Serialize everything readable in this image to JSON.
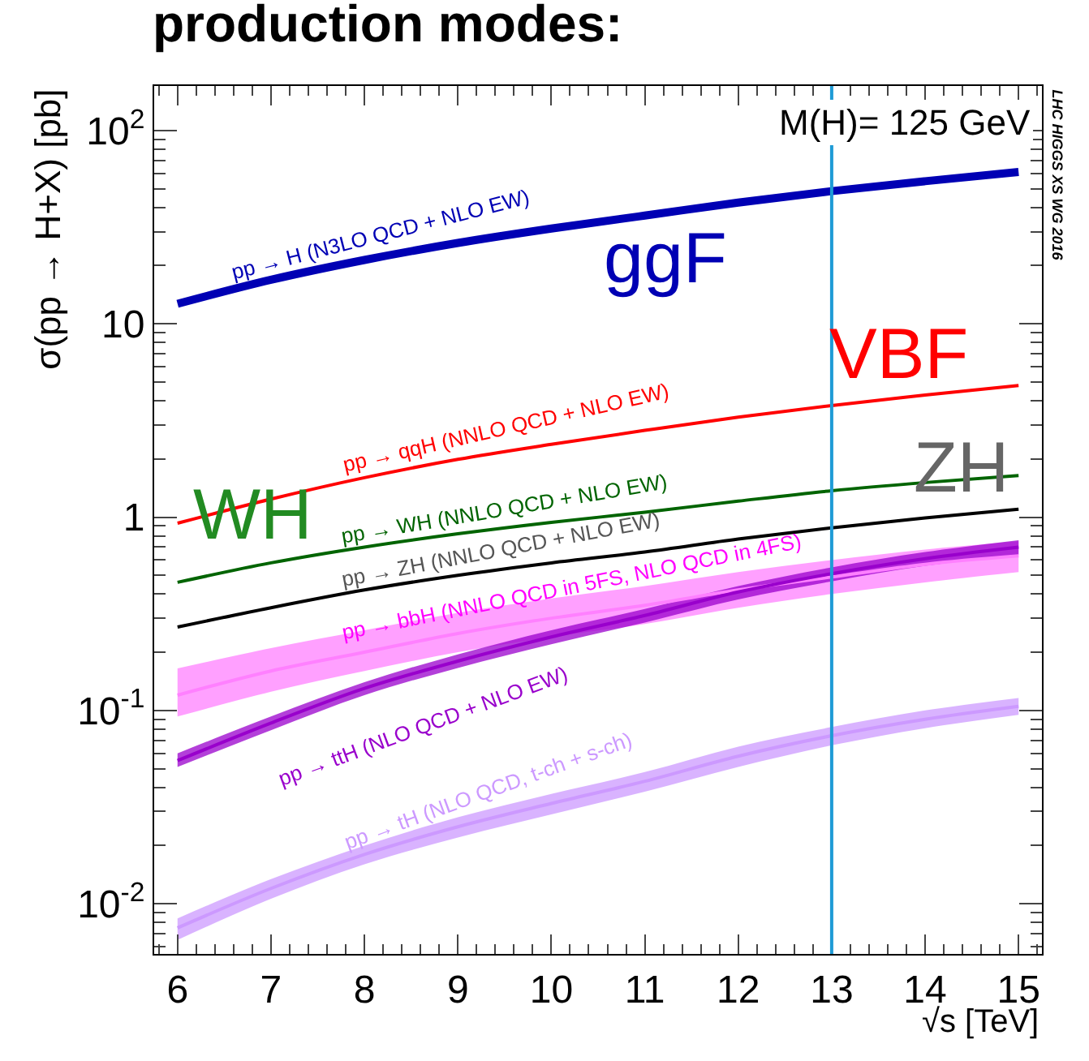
{
  "chart_data": {
    "type": "line",
    "title": "production modes:",
    "xlabel": "√s [TeV]",
    "ylabel": "σ(pp → H+X) [pb]",
    "x": [
      6,
      7,
      8,
      9,
      10,
      11,
      12,
      13,
      14,
      15
    ],
    "series": [
      {
        "name": "pp → H (N3LO QCD + NLO EW)",
        "color": "#0000b4",
        "values": [
          12.7,
          16.9,
          21.4,
          26.2,
          31.1,
          36.3,
          42.4,
          48.6,
          54.7,
          61.0
        ]
      },
      {
        "name": "pp → qqH (NNLO QCD + NLO EW)",
        "color": "#ff0000",
        "values": [
          0.93,
          1.24,
          1.6,
          1.99,
          2.38,
          2.81,
          3.29,
          3.78,
          4.28,
          4.8
        ]
      },
      {
        "name": "pp → WH (NNLO QCD + NLO EW)",
        "color": "#006400",
        "values": [
          0.46,
          0.58,
          0.7,
          0.82,
          0.94,
          1.06,
          1.21,
          1.37,
          1.51,
          1.64
        ]
      },
      {
        "name": "pp → ZH (NNLO QCD + NLO EW)",
        "color": "#000000",
        "values": [
          0.27,
          0.34,
          0.42,
          0.5,
          0.58,
          0.66,
          0.77,
          0.88,
          0.99,
          1.1
        ]
      },
      {
        "name": "pp → bbH (NNLO QCD in 5FS, NLO QCD in 4FS)",
        "color": "#ff80ff",
        "values": [
          0.12,
          0.16,
          0.2,
          0.25,
          0.3,
          0.35,
          0.42,
          0.49,
          0.57,
          0.63
        ],
        "lower": [
          0.093,
          0.125,
          0.16,
          0.2,
          0.24,
          0.28,
          0.34,
          0.4,
          0.46,
          0.52
        ],
        "upper": [
          0.165,
          0.21,
          0.26,
          0.32,
          0.38,
          0.44,
          0.52,
          0.6,
          0.68,
          0.75
        ]
      },
      {
        "name": "pp → ttH (NLO QCD + NLO EW)",
        "color": "#9900cc",
        "values": [
          0.055,
          0.086,
          0.13,
          0.18,
          0.24,
          0.31,
          0.41,
          0.51,
          0.61,
          0.7
        ],
        "lower": [
          0.051,
          0.079,
          0.12,
          0.166,
          0.22,
          0.285,
          0.375,
          0.465,
          0.56,
          0.64
        ],
        "upper": [
          0.06,
          0.093,
          0.14,
          0.195,
          0.26,
          0.335,
          0.44,
          0.55,
          0.66,
          0.76
        ]
      },
      {
        "name": "pp → tH (NLO QCD, t-ch + s-ch)",
        "color": "#cc99ff",
        "values": [
          0.0075,
          0.012,
          0.018,
          0.025,
          0.033,
          0.043,
          0.058,
          0.074,
          0.09,
          0.105
        ],
        "lower": [
          0.0065,
          0.0106,
          0.016,
          0.022,
          0.029,
          0.038,
          0.051,
          0.066,
          0.081,
          0.095
        ],
        "upper": [
          0.0084,
          0.0134,
          0.02,
          0.028,
          0.037,
          0.048,
          0.065,
          0.082,
          0.1,
          0.116
        ]
      }
    ],
    "annotations": [
      "ggF",
      "VBF",
      "WH",
      "ZH",
      "M(H)= 125 GeV",
      "LHC HIGGS XS WG 2016"
    ],
    "ref_lines": [
      {
        "axis": "x",
        "value": 13,
        "color": "#1f9bd6"
      }
    ],
    "log": "y",
    "marker": "none",
    "line_style": "solid",
    "xlim": [
      5.75,
      15.25
    ],
    "xticks": [
      6,
      7,
      8,
      9,
      10,
      11,
      12,
      13,
      14,
      15
    ],
    "ylim": [
      0.0055,
      170
    ],
    "yticks": [
      {
        "value": 0.01,
        "label": "10$^{-2}$"
      },
      {
        "value": 0.1,
        "label": "10$^{-1}$"
      },
      1,
      10,
      {
        "value": 100,
        "label": "10$^{2}$"
      }
    ]
  }
}
